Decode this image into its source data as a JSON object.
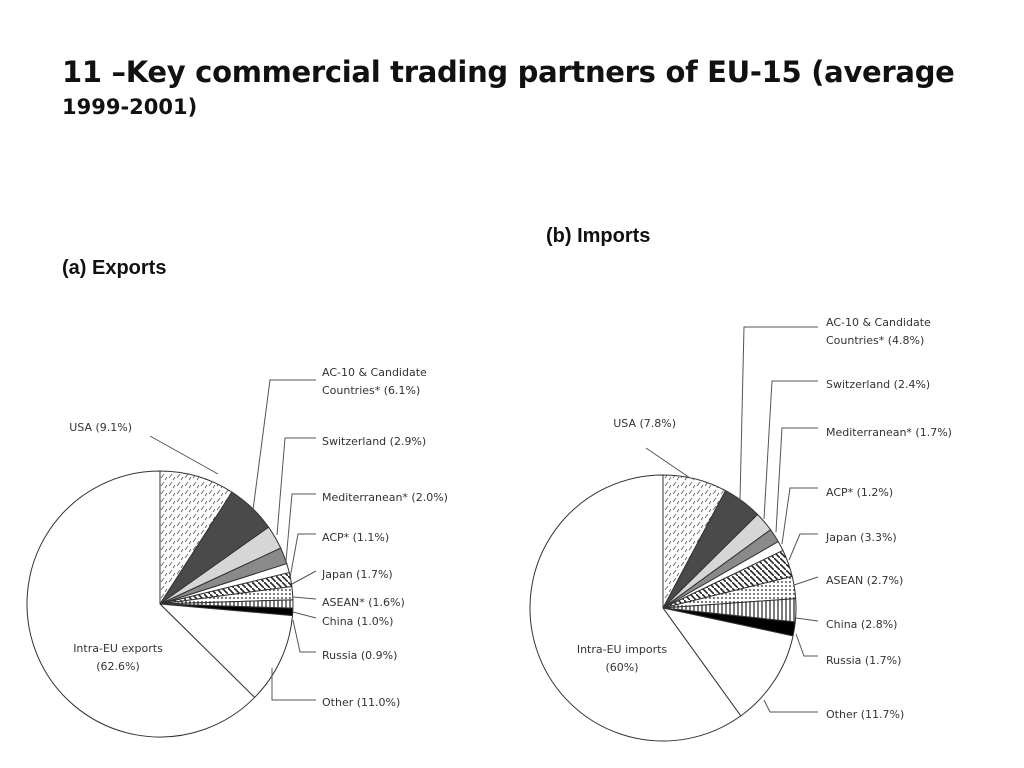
{
  "title": {
    "line1": "11 –Key commercial trading partners of EU-15 (average",
    "line2": "1999-2001)"
  },
  "chart_data": [
    {
      "type": "pie",
      "title": "(a) Exports",
      "slices": [
        {
          "label": "USA (9.1%)",
          "value": 9.1,
          "pattern": "dashes"
        },
        {
          "label": "AC-10 & Candidate Countries* (6.1%)",
          "value": 6.1,
          "pattern": "dark"
        },
        {
          "label": "Switzerland (2.9%)",
          "value": 2.9,
          "pattern": "light"
        },
        {
          "label": "Mediterranean* (2.0%)",
          "value": 2.0,
          "pattern": "mid"
        },
        {
          "label": "ACP* (1.1%)",
          "value": 1.1,
          "pattern": "white"
        },
        {
          "label": "Japan (1.7%)",
          "value": 1.7,
          "pattern": "hatch"
        },
        {
          "label": "ASEAN* (1.6%)",
          "value": 1.6,
          "pattern": "dots"
        },
        {
          "label": "China (1.0%)",
          "value": 1.0,
          "pattern": "vlines"
        },
        {
          "label": "Russia (0.9%)",
          "value": 0.9,
          "pattern": "black"
        },
        {
          "label": "Other (11.0%)",
          "value": 11.0,
          "pattern": "white"
        },
        {
          "label": "Intra-EU exports (62.6%)",
          "value": 62.6,
          "pattern": "white"
        }
      ],
      "center_label": [
        "Intra-EU exports",
        "(62.6%)"
      ],
      "legend": "external-callouts"
    },
    {
      "type": "pie",
      "title": "(b) Imports",
      "slices": [
        {
          "label": "USA (7.8%)",
          "value": 7.8,
          "pattern": "dashes"
        },
        {
          "label": "AC-10 & Candidate Countries* (4.8%)",
          "value": 4.8,
          "pattern": "dark"
        },
        {
          "label": "Switzerland (2.4%)",
          "value": 2.4,
          "pattern": "light"
        },
        {
          "label": "Mediterranean* (1.7%)",
          "value": 1.7,
          "pattern": "mid"
        },
        {
          "label": "ACP* (1.2%)",
          "value": 1.2,
          "pattern": "white"
        },
        {
          "label": "Japan (3.3%)",
          "value": 3.3,
          "pattern": "hatch"
        },
        {
          "label": "ASEAN (2.7%)",
          "value": 2.7,
          "pattern": "dots"
        },
        {
          "label": "China (2.8%)",
          "value": 2.8,
          "pattern": "vlines"
        },
        {
          "label": "Russia (1.7%)",
          "value": 1.7,
          "pattern": "black"
        },
        {
          "label": "Other (11.7%)",
          "value": 11.7,
          "pattern": "white"
        },
        {
          "label": "Intra-EU imports (60%)",
          "value": 60,
          "pattern": "white"
        }
      ],
      "center_label": [
        "Intra-EU imports",
        "(60%)"
      ],
      "legend": "external-callouts"
    }
  ],
  "colors": {
    "dark": "#4a4a4a",
    "mid": "#8a8a8a",
    "light": "#d6d6d6",
    "outline": "#333333",
    "leader": "#555555"
  }
}
